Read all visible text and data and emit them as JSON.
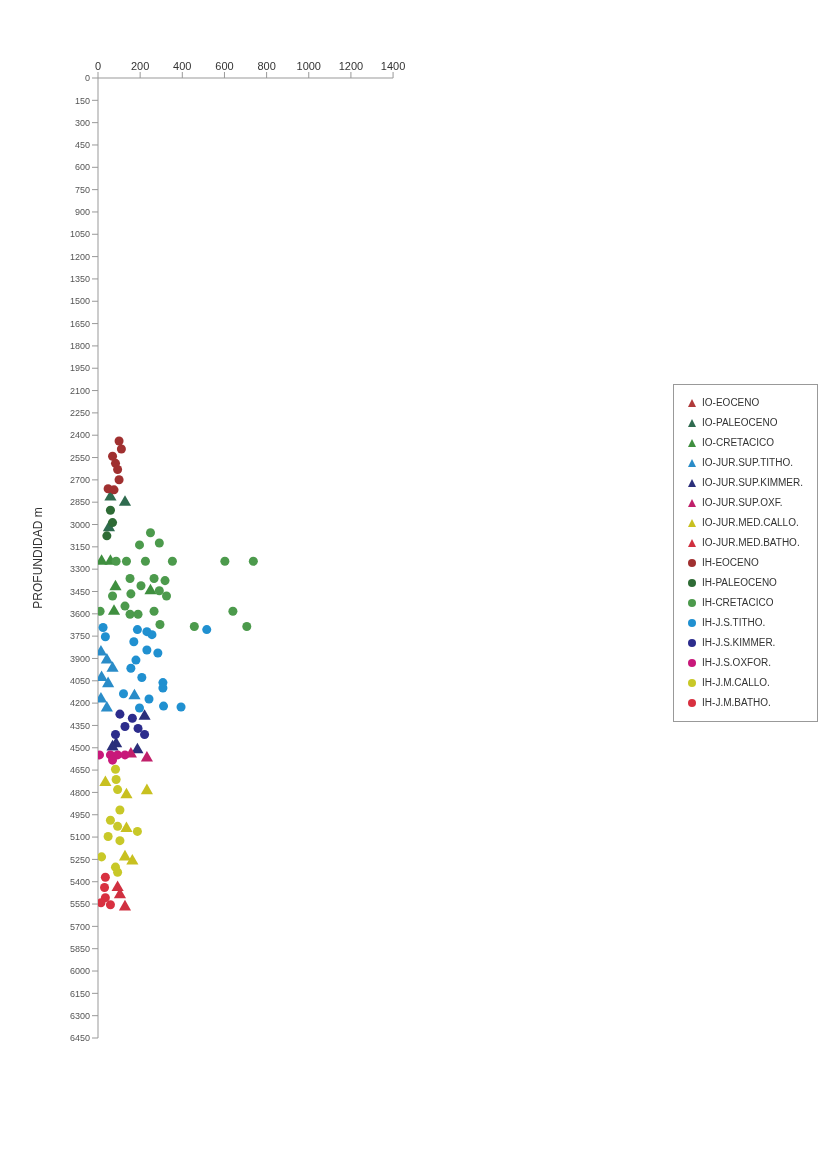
{
  "chart_data": {
    "type": "scatter",
    "ylabel": "PROFUNDIDAD m",
    "xlim": [
      0,
      1400
    ],
    "xticks": [
      0,
      200,
      400,
      600,
      800,
      1000,
      1200,
      1400
    ],
    "ylim": [
      6450,
      0
    ],
    "yticks": [
      0,
      150,
      300,
      450,
      600,
      750,
      900,
      1050,
      1200,
      1350,
      1500,
      1650,
      1800,
      1950,
      2100,
      2250,
      2400,
      2550,
      2700,
      2850,
      3000,
      3150,
      3300,
      3450,
      3600,
      3750,
      3900,
      4050,
      4200,
      4350,
      4500,
      4650,
      4800,
      4950,
      5100,
      5250,
      5400,
      5550,
      5700,
      5850,
      6000,
      6150,
      6300,
      6450
    ],
    "grid": false,
    "legend": "right",
    "series": [
      {
        "name": "IO-EOCENO",
        "color": "#b03a3a",
        "marker": "triangle",
        "x": [
          null
        ],
        "values": [
          null
        ]
      },
      {
        "name": "IO-PALEOCENO",
        "color": "#2f6b4f",
        "marker": "triangle",
        "x": [
          59,
          128,
          52
        ],
        "values": [
          2815,
          2850,
          3021
        ]
      },
      {
        "name": "IO-CRETACICO",
        "color": "#3f8f3f",
        "marker": "triangle",
        "x": [
          17,
          59,
          null,
          83,
          249,
          76
        ],
        "values": [
          3247,
          3247,
          null,
          3418,
          3445,
          3583
        ]
      },
      {
        "name": "IO-JUR.SUP.TITHO.",
        "color": "#2a8cc8",
        "marker": "triangle",
        "x": [
          14,
          42,
          69,
          17,
          48,
          14,
          42,
          173
        ],
        "values": [
          3857,
          3911,
          3966,
          4028,
          4069,
          4172,
          4233,
          4151
        ]
      },
      {
        "name": "IO-JUR.SUP.KIMMER.",
        "color": "#2b2f7a",
        "marker": "triangle",
        "x": [
          221,
          86,
          69,
          187
        ],
        "values": [
          4288,
          4473,
          4494,
          4514
        ]
      },
      {
        "name": "IO-JUR.SUP.OXF.",
        "color": "#c0206a",
        "marker": "triangle",
        "x": [
          156,
          232
        ],
        "values": [
          4542,
          4569
        ]
      },
      {
        "name": "IO-JUR.MED.CALLO.",
        "color": "#c8c020",
        "marker": "triangle",
        "x": [
          35,
          135,
          232,
          135,
          128,
          163
        ],
        "values": [
          4733,
          4816,
          4788,
          5042,
          5233,
          5261
        ]
      },
      {
        "name": "IO-JUR.MED.BATHO.",
        "color": "#d03040",
        "marker": "triangle",
        "x": [
          93,
          104,
          128
        ],
        "values": [
          5439,
          5487,
          5569
        ]
      },
      {
        "name": "IH-EOCENO",
        "color": "#a03030",
        "marker": "circle",
        "x": [
          100,
          111,
          69,
          83,
          93,
          100,
          48,
          76
        ],
        "values": [
          2439,
          2493,
          2541,
          2589,
          2630,
          2699,
          2760,
          2767
        ]
      },
      {
        "name": "IH-PALEOCENO",
        "color": "#2e6b35",
        "marker": "circle",
        "x": [
          59,
          69,
          42
        ],
        "values": [
          2904,
          2987,
          3076
        ]
      },
      {
        "name": "IH-CRETACICO",
        "color": "#4c9a4c",
        "marker": "circle",
        "x": [
          86,
          135,
          225,
          353,
          602,
          737,
          249,
          291,
          197,
          152,
          204,
          266,
          318,
          291,
          325,
          156,
          69,
          128,
          152,
          190,
          266,
          10,
          640,
          294,
          457,
          706
        ],
        "values": [
          3247,
          3247,
          3247,
          3247,
          3247,
          3247,
          3055,
          3124,
          3137,
          3363,
          3411,
          3363,
          3377,
          3445,
          3480,
          3466,
          3480,
          3548,
          3603,
          3603,
          3583,
          3583,
          3583,
          3672,
          3685,
          3685
        ]
      },
      {
        "name": "IH-J.S.TITHO.",
        "color": "#2090d0",
        "marker": "circle",
        "x": [
          516,
          24,
          null,
          187,
          232,
          256,
          170,
          232,
          284,
          180,
          156,
          208,
          308,
          308,
          121,
          242,
          311,
          394,
          197,
          35
        ],
        "values": [
          3706,
          3692,
          null,
          3706,
          3720,
          3740,
          3788,
          3843,
          3863,
          3911,
          3966,
          4028,
          4062,
          4098,
          4137,
          4172,
          4220,
          4226,
          4233,
          3754
        ]
      },
      {
        "name": "IH-J.S.KIMMER.",
        "color": "#2c2c8c",
        "marker": "circle",
        "x": [
          104,
          163,
          128,
          190,
          221,
          83
        ],
        "values": [
          4274,
          4302,
          4357,
          4370,
          4411,
          4411
        ]
      },
      {
        "name": "IH-J.S.OXFOR.",
        "color": "#c8187a",
        "marker": "circle",
        "x": [
          7,
          59,
          93,
          128,
          69
        ],
        "values": [
          4548,
          4548,
          4548,
          4548,
          4583
        ]
      },
      {
        "name": "IH-J.M.CALLO.",
        "color": "#c8c828",
        "marker": "circle",
        "x": [
          83,
          86,
          93,
          104,
          59,
          93,
          48,
          104,
          17,
          83,
          93,
          187
        ],
        "values": [
          4644,
          4713,
          4781,
          4918,
          4987,
          5028,
          5096,
          5124,
          5233,
          5302,
          5336,
          5062
        ]
      },
      {
        "name": "IH-J.M.BATHO.",
        "color": "#d83040",
        "marker": "circle",
        "x": [
          35,
          31,
          35,
          14,
          59
        ],
        "values": [
          5370,
          5439,
          5507,
          5542,
          5555
        ]
      }
    ]
  }
}
